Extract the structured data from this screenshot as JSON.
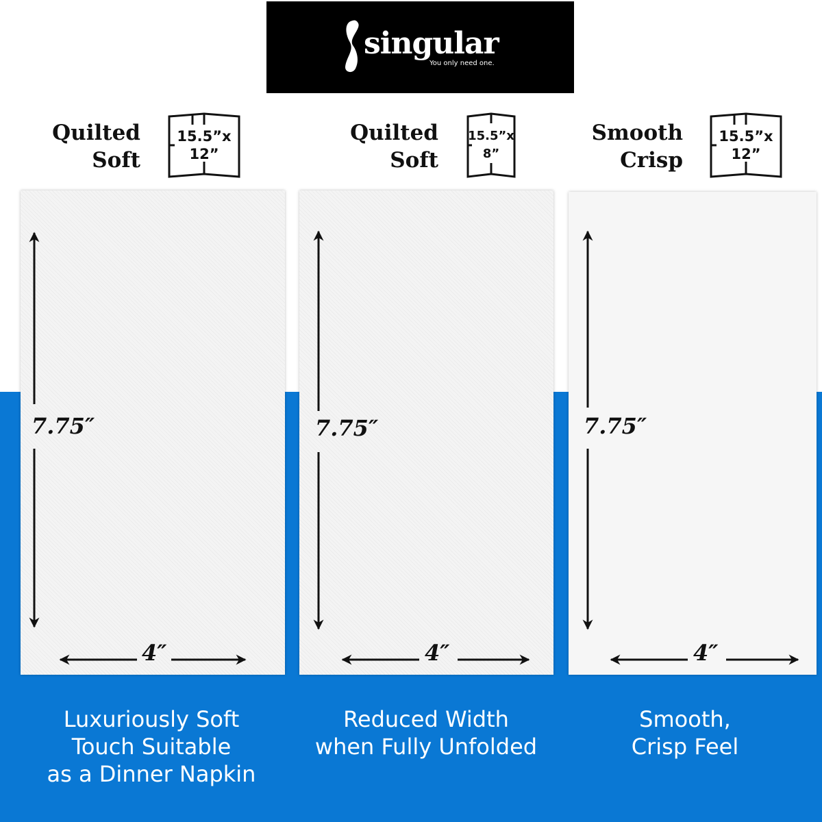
{
  "brand": {
    "name": "singular",
    "tagline": "You only need one."
  },
  "colors": {
    "blue": "#0a78d4",
    "black": "#000000"
  },
  "products": [
    {
      "label_line1": "Quilted",
      "label_line2": "Soft",
      "size_line1": "15.5”x",
      "size_line2": "12”",
      "height": "7.75″",
      "width": "4″",
      "caption": [
        "Luxuriously Soft",
        "Touch Suitable",
        "as a Dinner Napkin"
      ]
    },
    {
      "label_line1": "Quilted",
      "label_line2": "Soft",
      "size_line1": "15.5”x",
      "size_line2": "8”",
      "height": "7.75″",
      "width": "4″",
      "caption": [
        "Reduced Width",
        "when Fully Unfolded"
      ]
    },
    {
      "label_line1": "Smooth",
      "label_line2": "Crisp",
      "size_line1": "15.5”x",
      "size_line2": "12”",
      "height": "7.75″",
      "width": "4″",
      "caption": [
        "Smooth,",
        "Crisp Feel"
      ]
    }
  ]
}
